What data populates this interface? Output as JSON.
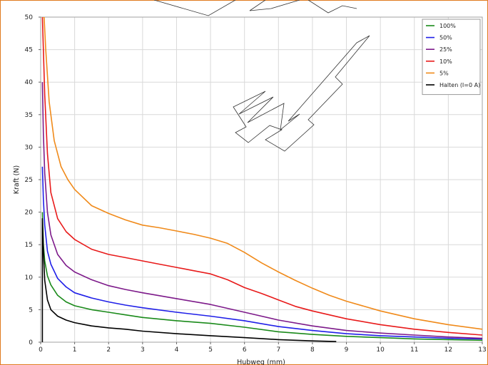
{
  "chart_data": {
    "type": "line",
    "xlabel": "Hubweg (mm)",
    "ylabel": "Kraft (N)",
    "xlim": [
      0,
      13
    ],
    "ylim": [
      0,
      50
    ],
    "xticks": [
      0,
      1,
      2,
      3,
      4,
      5,
      6,
      7,
      8,
      9,
      10,
      11,
      12,
      13
    ],
    "yticks": [
      0,
      5,
      10,
      15,
      20,
      25,
      30,
      35,
      40,
      45,
      50
    ],
    "grid": true,
    "legend_position": "top-right",
    "watermark_text": "WWW",
    "series": [
      {
        "name": "100%",
        "color": "#1a8a1a",
        "x": [
          0.05,
          0.08,
          0.12,
          0.2,
          0.3,
          0.5,
          0.75,
          1.0,
          1.5,
          2.0,
          2.5,
          3.0,
          4.0,
          5.0,
          6.0,
          7.0,
          8.0,
          9.0,
          10.0,
          11.0,
          12.0,
          13.0
        ],
        "y": [
          20.0,
          15.0,
          12.5,
          10.2,
          8.8,
          7.2,
          6.2,
          5.6,
          5.0,
          4.6,
          4.2,
          3.8,
          3.3,
          2.9,
          2.3,
          1.6,
          1.2,
          0.9,
          0.7,
          0.5,
          0.4,
          0.3
        ]
      },
      {
        "name": "50%",
        "color": "#1f1fe8",
        "x": [
          0.05,
          0.08,
          0.12,
          0.2,
          0.3,
          0.5,
          0.75,
          1.0,
          1.5,
          2.0,
          2.5,
          3.0,
          4.0,
          5.0,
          6.0,
          7.0,
          8.0,
          9.0,
          10.0,
          11.0,
          12.0,
          13.0
        ],
        "y": [
          27.0,
          22.0,
          18.0,
          14.0,
          12.0,
          9.8,
          8.5,
          7.6,
          6.8,
          6.2,
          5.7,
          5.3,
          4.6,
          4.0,
          3.3,
          2.4,
          1.8,
          1.3,
          1.0,
          0.8,
          0.6,
          0.5
        ]
      },
      {
        "name": "25%",
        "color": "#7d1a8a",
        "x": [
          0.05,
          0.08,
          0.12,
          0.2,
          0.3,
          0.5,
          0.75,
          1.0,
          1.5,
          2.0,
          2.5,
          3.0,
          4.0,
          5.0,
          6.0,
          7.0,
          8.0,
          9.0,
          10.0,
          11.0,
          12.0,
          13.0
        ],
        "y": [
          40.0,
          32.0,
          26.0,
          20.0,
          16.5,
          13.5,
          11.8,
          10.8,
          9.6,
          8.7,
          8.1,
          7.6,
          6.7,
          5.8,
          4.6,
          3.4,
          2.5,
          1.8,
          1.4,
          1.1,
          0.8,
          0.6
        ]
      },
      {
        "name": "10%",
        "color": "#e81a1a",
        "x": [
          0.05,
          0.08,
          0.12,
          0.2,
          0.3,
          0.5,
          0.75,
          1.0,
          1.5,
          2.0,
          2.5,
          3.0,
          3.5,
          4.0,
          4.5,
          5.0,
          5.5,
          6.0,
          6.5,
          7.0,
          7.5,
          8.0,
          9.0,
          10.0,
          11.0,
          12.0,
          13.0
        ],
        "y": [
          50.0,
          45.0,
          38.0,
          29.0,
          23.0,
          19.0,
          17.0,
          15.8,
          14.3,
          13.5,
          13.0,
          12.5,
          12.0,
          11.5,
          11.0,
          10.5,
          9.6,
          8.4,
          7.5,
          6.5,
          5.5,
          4.8,
          3.6,
          2.7,
          2.0,
          1.5,
          1.1
        ]
      },
      {
        "name": "5%",
        "color": "#f08a1a",
        "x": [
          0.05,
          0.1,
          0.15,
          0.25,
          0.4,
          0.6,
          0.8,
          1.0,
          1.5,
          2.0,
          2.5,
          3.0,
          3.5,
          4.0,
          4.5,
          5.0,
          5.5,
          6.0,
          6.5,
          7.0,
          7.5,
          8.0,
          8.5,
          9.0,
          10.0,
          11.0,
          12.0,
          13.0
        ],
        "y": [
          50.0,
          50.0,
          45.0,
          37.0,
          31.0,
          27.0,
          25.0,
          23.5,
          21.0,
          19.8,
          18.8,
          18.0,
          17.6,
          17.1,
          16.6,
          16.0,
          15.2,
          13.8,
          12.2,
          10.8,
          9.5,
          8.3,
          7.2,
          6.3,
          4.8,
          3.6,
          2.7,
          2.0
        ]
      },
      {
        "name": "Halten (I=0 A)",
        "color": "#000000",
        "x": [
          0.05,
          0.05,
          0.08,
          0.12,
          0.2,
          0.3,
          0.5,
          0.75,
          1.0,
          1.5,
          2.0,
          2.5,
          3.0,
          4.0,
          5.0,
          6.0,
          7.0,
          8.0,
          8.7
        ],
        "y": [
          0.0,
          19.0,
          14.0,
          9.5,
          6.5,
          5.0,
          4.0,
          3.4,
          3.0,
          2.5,
          2.2,
          2.0,
          1.7,
          1.3,
          1.0,
          0.7,
          0.4,
          0.2,
          0.1
        ]
      }
    ]
  }
}
